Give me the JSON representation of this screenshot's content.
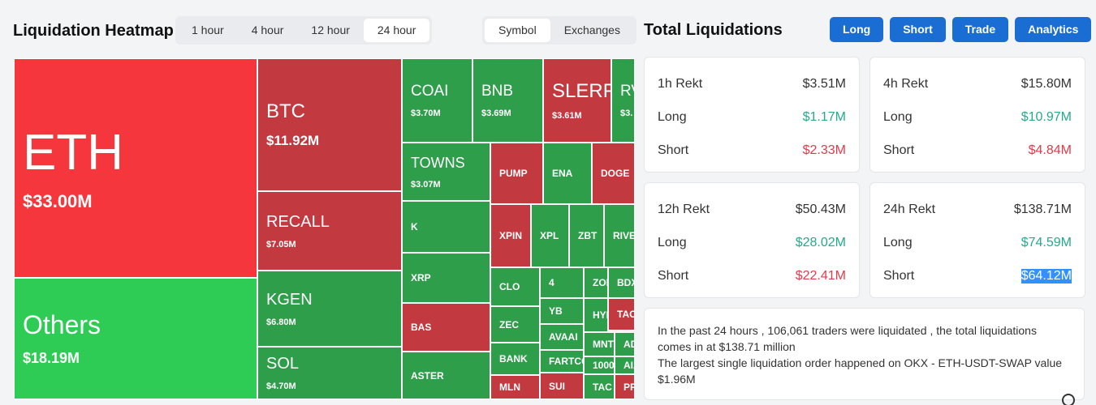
{
  "header": {
    "title": "Liquidation Heatmap",
    "tabs": [
      "1 hour",
      "4 hour",
      "12 hour",
      "24 hour"
    ],
    "toggle": [
      "Symbol",
      "Exchanges"
    ]
  },
  "heatmap": {
    "tiles": [
      {
        "label": "ETH",
        "value": "$33.00M",
        "color": "#f5363c"
      },
      {
        "label": "Others",
        "value": "$18.19M",
        "color": "#2ecc55"
      },
      {
        "label": "BTC",
        "value": "$11.92M",
        "color": "#c2393f"
      },
      {
        "label": "RECALL",
        "value": "$7.05M",
        "color": "#c2393f"
      },
      {
        "label": "KGEN",
        "value": "$6.80M",
        "color": "#2e9e4b"
      },
      {
        "label": "SOL",
        "value": "$4.70M",
        "color": "#2e9e4b"
      },
      {
        "label": "COAI",
        "value": "$3.70M",
        "color": "#2e9e4b"
      },
      {
        "label": "BNB",
        "value": "$3.69M",
        "color": "#2e9e4b"
      },
      {
        "label": "SLERF",
        "value": "$3.61M",
        "color": "#c2393f"
      },
      {
        "label": "RV",
        "value": "$3.",
        "color": "#2e9e4b"
      },
      {
        "label": "TOWNS",
        "value": "$3.07M",
        "color": "#2e9e4b"
      },
      {
        "label": "PUMP",
        "color": "#c2393f"
      },
      {
        "label": "ENA",
        "color": "#2e9e4b"
      },
      {
        "label": "DOGE",
        "color": "#c2393f"
      },
      {
        "label": "K",
        "color": "#2e9e4b"
      },
      {
        "label": "XPIN",
        "color": "#c2393f"
      },
      {
        "label": "XPL",
        "color": "#2e9e4b"
      },
      {
        "label": "ZBT",
        "color": "#2e9e4b"
      },
      {
        "label": "RIVE",
        "color": "#2e9e4b"
      },
      {
        "label": "XRP",
        "color": "#2e9e4b"
      },
      {
        "label": "CLO",
        "color": "#2e9e4b"
      },
      {
        "label": "4",
        "color": "#2e9e4b"
      },
      {
        "label": "ZOR",
        "color": "#2e9e4b"
      },
      {
        "label": "BDX",
        "color": "#2e9e4b"
      },
      {
        "label": "BAS",
        "color": "#c2393f"
      },
      {
        "label": "ZEC",
        "color": "#2e9e4b"
      },
      {
        "label": "YB",
        "color": "#2e9e4b"
      },
      {
        "label": "HYI",
        "color": "#2e9e4b"
      },
      {
        "label": "TAC",
        "color": "#c2393f"
      },
      {
        "label": "AVAAI",
        "color": "#2e9e4b"
      },
      {
        "label": "MNT",
        "color": "#2e9e4b"
      },
      {
        "label": "AD",
        "color": "#2e9e4b"
      },
      {
        "label": "BANK",
        "color": "#2e9e4b"
      },
      {
        "label": "FARTCO",
        "color": "#2e9e4b"
      },
      {
        "label": "1000",
        "color": "#2e9e4b"
      },
      {
        "label": "AIA",
        "color": "#2e9e4b"
      },
      {
        "label": "ASTER",
        "color": "#2e9e4b"
      },
      {
        "label": "MLN",
        "color": "#c2393f"
      },
      {
        "label": "SUI",
        "color": "#c2393f"
      },
      {
        "label": "TAC",
        "color": "#2e9e4b"
      },
      {
        "label": "PR",
        "color": "#c2393f"
      }
    ]
  },
  "summary": {
    "title": "Total Liquidations",
    "buttons": [
      "Long",
      "Short",
      "Trade",
      "Analytics"
    ],
    "cards": [
      {
        "title": "1h Rekt",
        "total": "$3.51M",
        "rows": [
          {
            "label": "Long",
            "value": "$1.17M"
          },
          {
            "label": "Short",
            "value": "$2.33M"
          }
        ]
      },
      {
        "title": "4h Rekt",
        "total": "$15.80M",
        "rows": [
          {
            "label": "Long",
            "value": "$10.97M"
          },
          {
            "label": "Short",
            "value": "$4.84M"
          }
        ]
      },
      {
        "title": "12h Rekt",
        "total": "$50.43M",
        "rows": [
          {
            "label": "Long",
            "value": "$28.02M"
          },
          {
            "label": "Short",
            "value": "$22.41M"
          }
        ]
      },
      {
        "title": "24h Rekt",
        "total": "$138.71M",
        "rows": [
          {
            "label": "Long",
            "value": "$74.59M"
          },
          {
            "label": "Short",
            "value": "$64.12M"
          }
        ]
      }
    ],
    "info": [
      "In the past 24 hours , 106,061 traders were liquidated , the total liquidations comes in at $138.71 million",
      "The largest single liquidation order happened on OKX - ETH-USDT-SWAP value $1.96M"
    ]
  }
}
